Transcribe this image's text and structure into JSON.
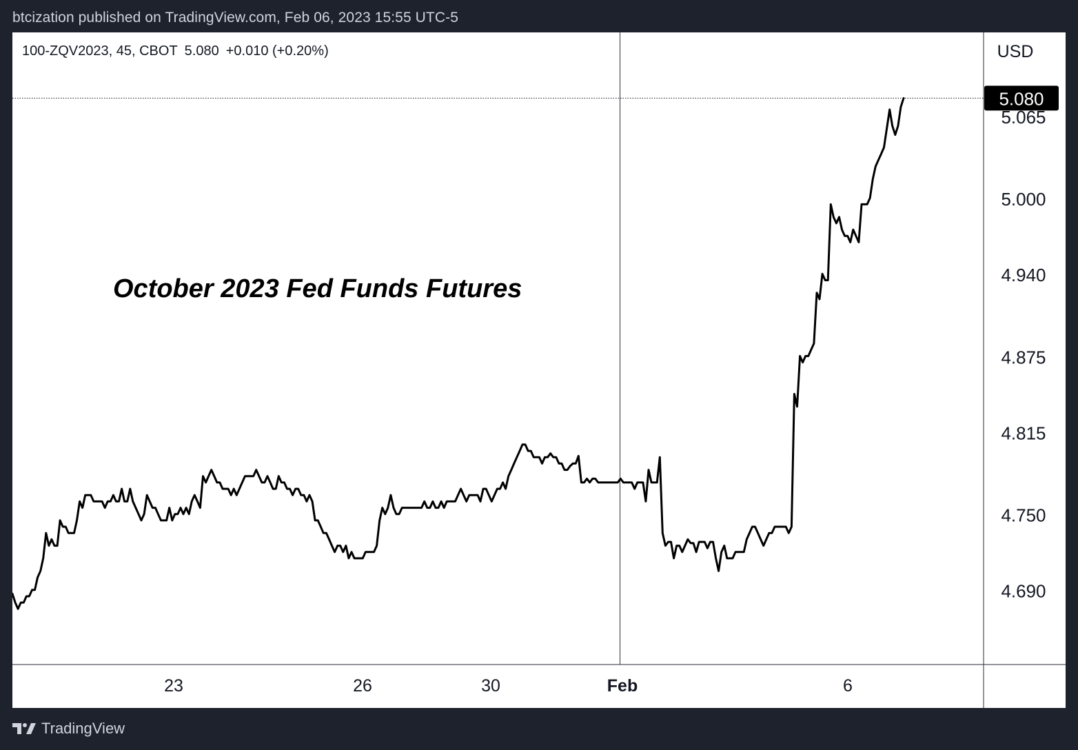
{
  "header": {
    "published_line": "btcization published on TradingView.com, Feb 06, 2023 15:55 UTC-5"
  },
  "legend": {
    "symbol": "100-ZQV2023, 45, CBOT",
    "last": "5.080",
    "change": "+0.010 (+0.20%)"
  },
  "footer": {
    "brand": "TradingView",
    "logo_icon": "tradingview-logo-icon"
  },
  "chart_data": {
    "type": "line",
    "title": "October 2023 Fed Funds Futures",
    "currency_label": "USD",
    "last_price_label": "5.080",
    "y_ticks": [
      "5.065",
      "5.000",
      "4.940",
      "4.875",
      "4.815",
      "4.750",
      "4.690"
    ],
    "ylim": [
      4.632,
      5.132
    ],
    "x_ticks": [
      {
        "label": "23",
        "bold": false
      },
      {
        "label": "26",
        "bold": false
      },
      {
        "label": "30",
        "bold": false
      },
      {
        "label": "Feb",
        "bold": true
      },
      {
        "label": "6",
        "bold": false
      }
    ],
    "grid": false,
    "crosshair_vertical": true,
    "colors": {
      "line": "#000000",
      "badge": "#000000"
    },
    "series": [
      {
        "values": [
          4.688,
          4.681,
          4.676,
          4.681,
          4.681,
          4.686,
          4.686,
          4.691,
          4.691,
          4.701,
          4.706,
          4.716,
          4.736,
          4.726,
          4.731,
          4.726,
          4.726,
          4.746,
          4.741,
          4.741,
          4.736,
          4.736,
          4.736,
          4.746,
          4.761,
          4.756,
          4.766,
          4.766,
          4.766,
          4.761,
          4.761,
          4.761,
          4.761,
          4.756,
          4.761,
          4.761,
          4.766,
          4.761,
          4.761,
          4.771,
          4.761,
          4.761,
          4.771,
          4.761,
          4.756,
          4.751,
          4.746,
          4.751,
          4.766,
          4.761,
          4.756,
          4.756,
          4.751,
          4.746,
          4.746,
          4.746,
          4.756,
          4.746,
          4.751,
          4.751,
          4.756,
          4.751,
          4.756,
          4.751,
          4.761,
          4.766,
          4.761,
          4.756,
          4.781,
          4.776,
          4.781,
          4.786,
          4.781,
          4.776,
          4.776,
          4.771,
          4.771,
          4.771,
          4.766,
          4.771,
          4.766,
          4.771,
          4.776,
          4.781,
          4.781,
          4.781,
          4.781,
          4.786,
          4.781,
          4.776,
          4.776,
          4.781,
          4.776,
          4.771,
          4.771,
          4.781,
          4.776,
          4.776,
          4.771,
          4.771,
          4.766,
          4.771,
          4.771,
          4.766,
          4.766,
          4.761,
          4.766,
          4.761,
          4.746,
          4.746,
          4.741,
          4.736,
          4.736,
          4.731,
          4.726,
          4.721,
          4.726,
          4.726,
          4.721,
          4.726,
          4.716,
          4.721,
          4.716,
          4.716,
          4.716,
          4.716,
          4.721,
          4.721,
          4.721,
          4.721,
          4.726,
          4.746,
          4.756,
          4.751,
          4.756,
          4.766,
          4.756,
          4.751,
          4.751,
          4.756,
          4.756,
          4.756,
          4.756,
          4.756,
          4.756,
          4.756,
          4.756,
          4.761,
          4.756,
          4.756,
          4.761,
          4.756,
          4.756,
          4.761,
          4.756,
          4.761,
          4.761,
          4.761,
          4.761,
          4.766,
          4.771,
          4.766,
          4.761,
          4.766,
          4.766,
          4.766,
          4.766,
          4.761,
          4.771,
          4.771,
          4.766,
          4.761,
          4.766,
          4.771,
          4.771,
          4.776,
          4.771,
          4.781,
          4.786,
          4.791,
          4.796,
          4.801,
          4.806,
          4.806,
          4.801,
          4.801,
          4.796,
          4.796,
          4.796,
          4.791,
          4.796,
          4.796,
          4.799,
          4.796,
          4.796,
          4.791,
          4.791,
          4.786,
          4.786,
          4.789,
          4.791,
          4.791,
          4.797,
          4.776,
          4.776,
          4.779,
          4.776,
          4.779,
          4.779,
          4.776,
          4.776,
          4.776,
          4.776,
          4.776,
          4.776,
          4.776,
          4.776,
          4.779,
          4.776,
          4.776,
          4.776,
          4.776,
          4.771,
          4.776,
          4.776,
          4.776,
          4.761,
          4.786,
          4.776,
          4.776,
          4.776,
          4.796,
          4.736,
          4.726,
          4.729,
          4.729,
          4.716,
          4.726,
          4.726,
          4.721,
          4.726,
          4.731,
          4.728,
          4.728,
          4.721,
          4.729,
          4.729,
          4.729,
          4.724,
          4.729,
          4.729,
          4.716,
          4.706,
          4.721,
          4.726,
          4.716,
          4.716,
          4.716,
          4.721,
          4.721,
          4.721,
          4.721,
          4.731,
          4.736,
          4.741,
          4.741,
          4.736,
          4.731,
          4.726,
          4.731,
          4.736,
          4.736,
          4.741,
          4.741,
          4.741,
          4.741,
          4.741,
          4.736,
          4.741,
          4.846,
          4.836,
          4.876,
          4.871,
          4.876,
          4.876,
          4.881,
          4.886,
          4.926,
          4.921,
          4.941,
          4.936,
          4.936,
          4.996,
          4.986,
          4.981,
          4.986,
          4.976,
          4.971,
          4.971,
          4.966,
          4.976,
          4.971,
          4.966,
          4.996,
          4.996,
          4.996,
          5.001,
          5.016,
          5.026,
          5.031,
          5.036,
          5.041,
          5.056,
          5.071,
          5.058,
          5.051,
          5.058,
          5.073,
          5.08
        ]
      }
    ]
  }
}
